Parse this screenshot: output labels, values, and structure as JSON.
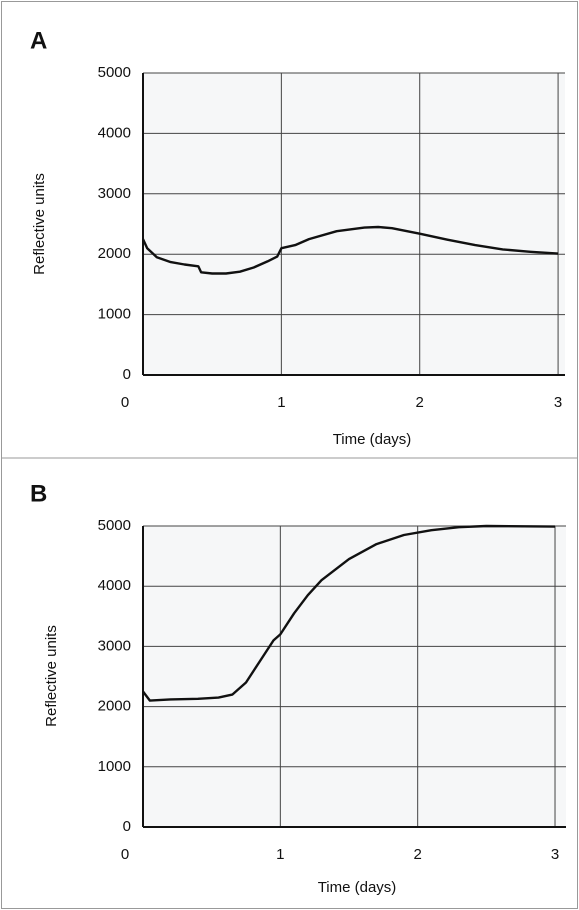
{
  "chart_data": [
    {
      "type": "line",
      "label": "A",
      "xlabel": "Time (days)",
      "ylabel": "Reflective units",
      "x": [
        0,
        0.03,
        0.1,
        0.2,
        0.3,
        0.4,
        0.42,
        0.5,
        0.6,
        0.7,
        0.8,
        0.9,
        0.97,
        1.0,
        1.1,
        1.2,
        1.4,
        1.6,
        1.7,
        1.8,
        2.0,
        2.2,
        2.4,
        2.6,
        2.8,
        3.0
      ],
      "values": [
        2250,
        2100,
        1950,
        1870,
        1830,
        1800,
        1700,
        1680,
        1680,
        1710,
        1780,
        1880,
        1960,
        2100,
        2150,
        2250,
        2380,
        2440,
        2450,
        2430,
        2340,
        2240,
        2150,
        2080,
        2040,
        2010
      ],
      "color": "#111111",
      "xlim": [
        0,
        3.05
      ],
      "ylim": [
        0,
        5000
      ],
      "xticks": [
        0,
        1,
        2,
        3
      ],
      "yticks": [
        0,
        1000,
        2000,
        3000,
        4000,
        5000
      ],
      "grid": true
    },
    {
      "type": "line",
      "label": "B",
      "xlabel": "Time (days)",
      "ylabel": "Reflective units",
      "x": [
        0,
        0.05,
        0.2,
        0.4,
        0.55,
        0.65,
        0.75,
        0.85,
        0.95,
        1.0,
        1.1,
        1.2,
        1.3,
        1.5,
        1.7,
        1.9,
        2.1,
        2.3,
        2.5,
        3.0
      ],
      "values": [
        2250,
        2100,
        2120,
        2130,
        2150,
        2200,
        2400,
        2750,
        3100,
        3200,
        3550,
        3850,
        4100,
        4450,
        4700,
        4850,
        4930,
        4980,
        5000,
        4990
      ],
      "color": "#111111",
      "xlim": [
        0,
        3.08
      ],
      "ylim": [
        0,
        5000
      ],
      "xticks": [
        0,
        1,
        2,
        3
      ],
      "yticks": [
        0,
        1000,
        2000,
        3000,
        4000,
        5000
      ],
      "grid": true
    }
  ]
}
